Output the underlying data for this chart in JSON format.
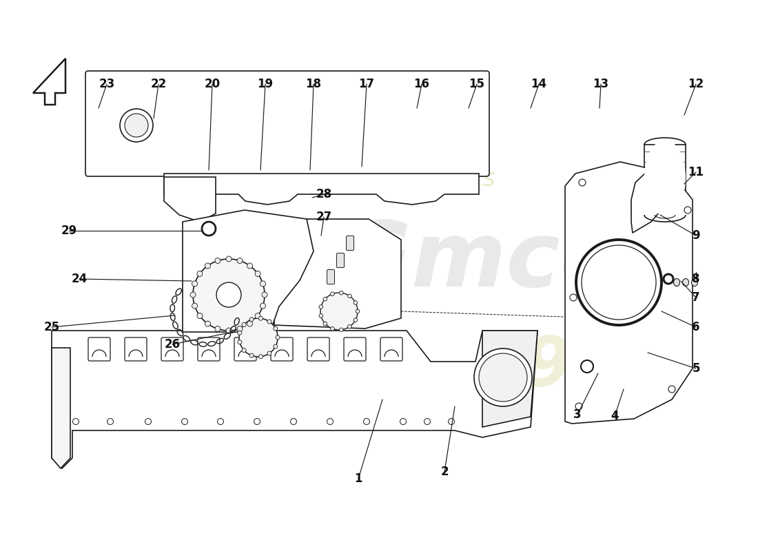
{
  "background_color": "#ffffff",
  "line_color": "#1a1a1a",
  "arrow_color": "#1a1a1a",
  "font_size": 12,
  "watermark_color1": "#cccccc",
  "watermark_color2": "#e8e8c8",
  "parts_data": [
    [
      "1",
      520,
      105,
      555,
      220
    ],
    [
      "2",
      645,
      115,
      660,
      210
    ],
    [
      "3",
      838,
      198,
      868,
      258
    ],
    [
      "4",
      892,
      196,
      905,
      235
    ],
    [
      "5",
      1010,
      265,
      940,
      288
    ],
    [
      "6",
      1010,
      325,
      960,
      348
    ],
    [
      "7",
      1010,
      368,
      988,
      392
    ],
    [
      "8",
      1010,
      395,
      1010,
      405
    ],
    [
      "9",
      1010,
      458,
      958,
      488
    ],
    [
      "11",
      1010,
      550,
      993,
      533
    ],
    [
      "12",
      1010,
      678,
      993,
      633
    ],
    [
      "13",
      872,
      678,
      870,
      643
    ],
    [
      "14",
      782,
      678,
      770,
      643
    ],
    [
      "15",
      692,
      678,
      680,
      643
    ],
    [
      "16",
      612,
      678,
      605,
      643
    ],
    [
      "17",
      532,
      678,
      525,
      558
    ],
    [
      "18",
      455,
      678,
      450,
      553
    ],
    [
      "19",
      385,
      678,
      378,
      553
    ],
    [
      "20",
      308,
      678,
      303,
      553
    ],
    [
      "22",
      230,
      678,
      223,
      628
    ],
    [
      "23",
      155,
      678,
      143,
      643
    ],
    [
      "24",
      115,
      395,
      278,
      392
    ],
    [
      "25",
      75,
      325,
      253,
      342
    ],
    [
      "26",
      250,
      300,
      338,
      318
    ],
    [
      "27",
      470,
      485,
      466,
      458
    ],
    [
      "28",
      470,
      518,
      453,
      513
    ],
    [
      "29",
      100,
      465,
      293,
      465
    ]
  ]
}
